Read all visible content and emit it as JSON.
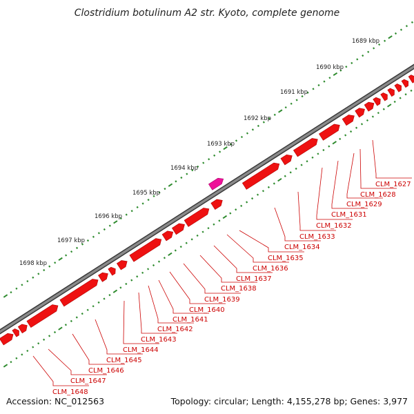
{
  "title": "Clostridium botulinum A2 str. Kyoto, complete genome",
  "footer": {
    "accession": "Accession: NC_012563",
    "summary": "Topology: circular; Length: 4,155,278 bp; Genes: 3,977"
  },
  "colors": {
    "backbone": "#7a7a7a",
    "backbone_edge": "#3a3a3a",
    "ticks": "#2e8b2e",
    "gene": "#ee1111",
    "gene_highlight": "#ee1199",
    "label": "#cc0000"
  },
  "scale_labels": [
    "1689 kbp",
    "1690 kbp",
    "1691 kbp",
    "1692 kbp",
    "1693 kbp",
    "1694 kbp",
    "1695 kbp",
    "1696 kbp",
    "1697 kbp",
    "1698 kbp"
  ],
  "gene_labels": [
    "CLM_1627",
    "CLM_1628",
    "CLM_1629",
    "CLM_1631",
    "CLM_1632",
    "CLM_1633",
    "CLM_1634",
    "CLM_1635",
    "CLM_1636",
    "CLM_1637",
    "CLM_1638",
    "CLM_1639",
    "CLM_1640",
    "CLM_1641",
    "CLM_1642",
    "CLM_1643",
    "CLM_1644",
    "CLM_1645",
    "CLM_1646",
    "CLM_1647",
    "CLM_1648"
  ]
}
